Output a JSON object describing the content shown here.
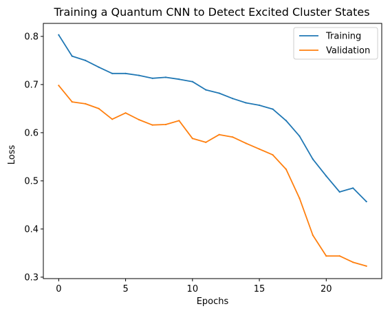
{
  "chart_data": {
    "type": "line",
    "title": "Training a Quantum CNN to Detect Excited Cluster States",
    "xlabel": "Epochs",
    "ylabel": "Loss",
    "x": [
      0,
      1,
      2,
      3,
      4,
      5,
      6,
      7,
      8,
      9,
      10,
      11,
      12,
      13,
      14,
      15,
      16,
      17,
      18,
      19,
      20,
      21,
      22,
      23
    ],
    "xlim": [
      -1.15,
      24.15
    ],
    "ylim": [
      0.297,
      0.827
    ],
    "xticks": [
      0,
      5,
      10,
      15,
      20
    ],
    "yticks": [
      0.3,
      0.4,
      0.5,
      0.6,
      0.7,
      0.8
    ],
    "xtick_labels": [
      "0",
      "5",
      "10",
      "15",
      "20"
    ],
    "ytick_labels": [
      "0.3",
      "0.4",
      "0.5",
      "0.6",
      "0.7",
      "0.8"
    ],
    "grid": false,
    "legend_position": "top-right",
    "series": [
      {
        "name": "Training",
        "color": "#1f77b4",
        "values": [
          0.803,
          0.759,
          0.75,
          0.736,
          0.723,
          0.723,
          0.719,
          0.713,
          0.715,
          0.711,
          0.706,
          0.689,
          0.682,
          0.671,
          0.662,
          0.657,
          0.649,
          0.625,
          0.593,
          0.545,
          0.51,
          0.477,
          0.485,
          0.457
        ]
      },
      {
        "name": "Validation",
        "color": "#ff7f0e",
        "values": [
          0.698,
          0.664,
          0.66,
          0.65,
          0.628,
          0.641,
          0.627,
          0.616,
          0.617,
          0.625,
          0.588,
          0.58,
          0.596,
          0.591,
          0.578,
          0.566,
          0.554,
          0.524,
          0.464,
          0.387,
          0.344,
          0.344,
          0.331,
          0.323
        ]
      }
    ]
  }
}
